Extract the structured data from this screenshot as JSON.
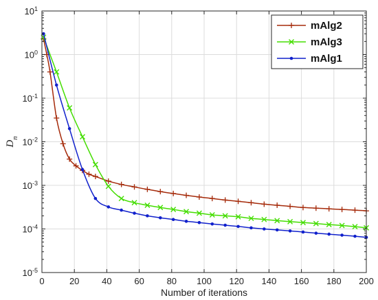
{
  "chart_data": {
    "type": "line",
    "title": "",
    "xlabel": "Number of iterations",
    "ylabel_base": "D",
    "ylabel_sub": "n",
    "xlim": [
      0,
      200
    ],
    "ylim_log10": [
      -5,
      1
    ],
    "yscale": "log",
    "grid": true,
    "legend_position": "top-right",
    "x_ticks": [
      0,
      20,
      40,
      60,
      80,
      100,
      120,
      140,
      160,
      180,
      200
    ],
    "y_ticks": [
      {
        "base": "10",
        "exp": "1"
      },
      {
        "base": "10",
        "exp": "0"
      },
      {
        "base": "10",
        "exp": "-1"
      },
      {
        "base": "10",
        "exp": "-2"
      },
      {
        "base": "10",
        "exp": "-3"
      },
      {
        "base": "10",
        "exp": "-4"
      },
      {
        "base": "10",
        "exp": "-5"
      }
    ],
    "series": [
      {
        "name": "mAlg2",
        "color": "#a52a0a",
        "marker": "plus",
        "x": [
          1,
          3,
          5,
          9,
          13,
          17,
          21,
          25,
          29,
          33,
          41,
          49,
          57,
          65,
          73,
          81,
          89,
          97,
          105,
          113,
          121,
          129,
          137,
          145,
          153,
          161,
          169,
          177,
          185,
          193,
          200
        ],
        "y": [
          2.3,
          1.0,
          0.4,
          0.035,
          0.009,
          0.004,
          0.0028,
          0.0022,
          0.0018,
          0.0016,
          0.00125,
          0.00105,
          0.00092,
          0.00081,
          0.00072,
          0.00065,
          0.00059,
          0.00054,
          0.0005,
          0.00046,
          0.00043,
          0.0004,
          0.00037,
          0.00035,
          0.00033,
          0.00031,
          0.0003,
          0.00029,
          0.00028,
          0.00027,
          0.00026
        ]
      },
      {
        "name": "mAlg3",
        "color": "#44dd00",
        "marker": "x",
        "x": [
          1,
          9,
          17,
          25,
          33,
          41,
          49,
          57,
          65,
          73,
          81,
          89,
          97,
          105,
          113,
          121,
          129,
          137,
          145,
          153,
          161,
          169,
          177,
          185,
          193,
          200
        ],
        "y": [
          2.5,
          0.4,
          0.06,
          0.013,
          0.003,
          0.00095,
          0.0005,
          0.0004,
          0.00035,
          0.00031,
          0.00028,
          0.00025,
          0.00023,
          0.00021,
          0.0002,
          0.00019,
          0.000175,
          0.000165,
          0.000155,
          0.000147,
          0.00014,
          0.000133,
          0.000126,
          0.00012,
          0.000113,
          0.000106
        ]
      },
      {
        "name": "mAlg1",
        "color": "#1020cc",
        "marker": "dot",
        "x": [
          1,
          9,
          17,
          25,
          33,
          41,
          49,
          57,
          65,
          73,
          81,
          89,
          97,
          105,
          113,
          121,
          129,
          137,
          145,
          153,
          161,
          169,
          177,
          185,
          193,
          200
        ],
        "y": [
          3.0,
          0.2,
          0.02,
          0.0023,
          0.0005,
          0.00032,
          0.00027,
          0.00023,
          0.0002,
          0.00018,
          0.000165,
          0.00015,
          0.00014,
          0.00013,
          0.000122,
          0.000114,
          0.000106,
          0.0001,
          9.5e-05,
          9e-05,
          8.5e-05,
          8e-05,
          7.6e-05,
          7.2e-05,
          6.8e-05,
          6.4e-05
        ]
      }
    ]
  }
}
